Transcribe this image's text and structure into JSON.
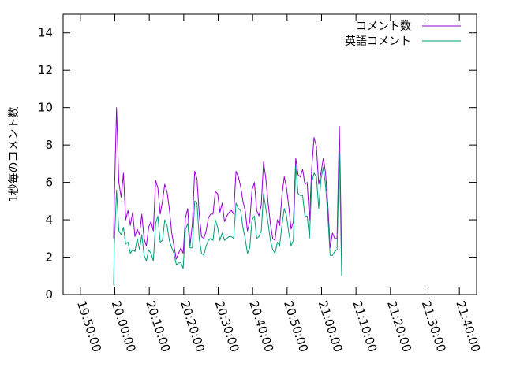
{
  "chart_data": {
    "type": "line",
    "title": "",
    "xlabel": "",
    "ylabel": "1秒毎のコメント数",
    "xlim": [
      "19:45:00",
      "21:45:00"
    ],
    "ylim": [
      0,
      15
    ],
    "x_ticks": [
      "19:50:00",
      "20:00:00",
      "20:10:00",
      "20:20:00",
      "20:30:00",
      "20:40:00",
      "20:50:00",
      "21:00:00",
      "21:10:00",
      "21:20:00",
      "21:30:00",
      "21:40:00"
    ],
    "y_ticks": [
      0,
      2,
      4,
      6,
      8,
      10,
      12,
      14
    ],
    "grid": false,
    "legend_position": "top-right",
    "series": [
      {
        "name": "コメント数",
        "color": "#9400d3",
        "points": [
          [
            "19:59:40",
            3.0
          ],
          [
            "19:59:50",
            5.0
          ],
          [
            "20:00:30",
            10.0
          ],
          [
            "20:01:10",
            6.0
          ],
          [
            "20:01:50",
            5.2
          ],
          [
            "20:02:30",
            6.5
          ],
          [
            "20:03:10",
            4.0
          ],
          [
            "20:03:50",
            4.5
          ],
          [
            "20:04:30",
            3.7
          ],
          [
            "20:05:10",
            4.4
          ],
          [
            "20:05:50",
            3.1
          ],
          [
            "20:06:30",
            3.5
          ],
          [
            "20:07:10",
            3.2
          ],
          [
            "20:07:50",
            4.3
          ],
          [
            "20:08:30",
            3.0
          ],
          [
            "20:09:10",
            2.6
          ],
          [
            "20:09:50",
            3.6
          ],
          [
            "20:10:30",
            3.9
          ],
          [
            "20:11:10",
            3.4
          ],
          [
            "20:11:50",
            6.1
          ],
          [
            "20:12:30",
            5.7
          ],
          [
            "20:13:10",
            4.3
          ],
          [
            "20:13:50",
            5.0
          ],
          [
            "20:14:30",
            5.9
          ],
          [
            "20:15:10",
            5.5
          ],
          [
            "20:15:50",
            4.6
          ],
          [
            "20:16:30",
            3.3
          ],
          [
            "20:17:10",
            2.6
          ],
          [
            "20:17:50",
            1.9
          ],
          [
            "20:18:30",
            2.2
          ],
          [
            "20:19:10",
            2.5
          ],
          [
            "20:19:50",
            2.2
          ],
          [
            "20:20:30",
            4.1
          ],
          [
            "20:21:10",
            4.6
          ],
          [
            "20:21:50",
            2.6
          ],
          [
            "20:22:30",
            3.8
          ],
          [
            "20:23:10",
            6.6
          ],
          [
            "20:23:50",
            6.2
          ],
          [
            "20:24:30",
            4.3
          ],
          [
            "20:25:10",
            3.1
          ],
          [
            "20:25:50",
            3.0
          ],
          [
            "20:26:30",
            3.4
          ],
          [
            "20:27:10",
            4.1
          ],
          [
            "20:27:50",
            4.3
          ],
          [
            "20:28:30",
            4.3
          ],
          [
            "20:29:10",
            5.5
          ],
          [
            "20:29:50",
            5.4
          ],
          [
            "20:30:30",
            4.4
          ],
          [
            "20:31:10",
            4.9
          ],
          [
            "20:31:50",
            3.9
          ],
          [
            "20:32:30",
            4.2
          ],
          [
            "20:33:10",
            4.4
          ],
          [
            "20:33:50",
            4.5
          ],
          [
            "20:34:30",
            4.3
          ],
          [
            "20:35:10",
            6.6
          ],
          [
            "20:35:50",
            6.3
          ],
          [
            "20:36:30",
            5.8
          ],
          [
            "20:37:10",
            5.0
          ],
          [
            "20:37:50",
            4.5
          ],
          [
            "20:38:30",
            3.4
          ],
          [
            "20:39:10",
            3.9
          ],
          [
            "20:39:50",
            5.6
          ],
          [
            "20:40:30",
            6.0
          ],
          [
            "20:41:10",
            4.5
          ],
          [
            "20:41:50",
            4.2
          ],
          [
            "20:42:30",
            4.8
          ],
          [
            "20:43:10",
            7.1
          ],
          [
            "20:43:50",
            6.2
          ],
          [
            "20:44:30",
            4.9
          ],
          [
            "20:45:10",
            3.8
          ],
          [
            "20:45:50",
            3.0
          ],
          [
            "20:46:30",
            2.9
          ],
          [
            "20:47:10",
            4.0
          ],
          [
            "20:47:50",
            3.7
          ],
          [
            "20:48:30",
            5.3
          ],
          [
            "20:49:10",
            6.3
          ],
          [
            "20:49:50",
            5.7
          ],
          [
            "20:50:30",
            4.7
          ],
          [
            "20:51:10",
            3.5
          ],
          [
            "20:51:50",
            3.9
          ],
          [
            "20:52:30",
            7.3
          ],
          [
            "20:53:10",
            6.4
          ],
          [
            "20:53:50",
            6.3
          ],
          [
            "20:54:30",
            6.7
          ],
          [
            "20:55:10",
            5.9
          ],
          [
            "20:55:50",
            6.0
          ],
          [
            "20:56:30",
            4.0
          ],
          [
            "20:57:10",
            6.8
          ],
          [
            "20:57:50",
            8.4
          ],
          [
            "20:58:30",
            7.9
          ],
          [
            "20:59:10",
            5.9
          ],
          [
            "20:59:50",
            6.5
          ],
          [
            "21:00:30",
            7.3
          ],
          [
            "21:01:10",
            6.5
          ],
          [
            "21:01:50",
            4.8
          ],
          [
            "21:02:30",
            2.5
          ],
          [
            "21:03:10",
            3.3
          ],
          [
            "21:03:50",
            3.0
          ],
          [
            "21:04:30",
            3.0
          ],
          [
            "21:05:10",
            9.0
          ],
          [
            "21:05:50",
            2.1
          ]
        ]
      },
      {
        "name": "英語コメント",
        "color": "#009e73",
        "points": [
          [
            "19:59:40",
            0.5
          ],
          [
            "19:59:50",
            2.6
          ],
          [
            "20:00:30",
            5.6
          ],
          [
            "20:01:10",
            3.4
          ],
          [
            "20:01:50",
            3.2
          ],
          [
            "20:02:30",
            3.6
          ],
          [
            "20:03:10",
            2.7
          ],
          [
            "20:03:50",
            2.8
          ],
          [
            "20:04:30",
            2.2
          ],
          [
            "20:05:10",
            2.4
          ],
          [
            "20:05:50",
            2.3
          ],
          [
            "20:06:30",
            3.0
          ],
          [
            "20:07:10",
            2.4
          ],
          [
            "20:07:50",
            3.2
          ],
          [
            "20:08:30",
            2.1
          ],
          [
            "20:09:10",
            1.8
          ],
          [
            "20:09:50",
            2.4
          ],
          [
            "20:10:30",
            2.2
          ],
          [
            "20:11:10",
            1.8
          ],
          [
            "20:11:50",
            3.8
          ],
          [
            "20:12:30",
            4.2
          ],
          [
            "20:13:10",
            2.8
          ],
          [
            "20:13:50",
            2.9
          ],
          [
            "20:14:30",
            4.0
          ],
          [
            "20:15:10",
            3.7
          ],
          [
            "20:15:50",
            2.9
          ],
          [
            "20:16:30",
            2.5
          ],
          [
            "20:17:10",
            2.2
          ],
          [
            "20:17:50",
            1.6
          ],
          [
            "20:18:30",
            1.7
          ],
          [
            "20:19:10",
            1.7
          ],
          [
            "20:19:50",
            1.4
          ],
          [
            "20:20:30",
            3.5
          ],
          [
            "20:21:10",
            3.8
          ],
          [
            "20:21:50",
            2.5
          ],
          [
            "20:22:30",
            2.5
          ],
          [
            "20:23:10",
            5.0
          ],
          [
            "20:23:50",
            4.9
          ],
          [
            "20:24:30",
            3.0
          ],
          [
            "20:25:10",
            2.2
          ],
          [
            "20:25:50",
            2.1
          ],
          [
            "20:26:30",
            2.6
          ],
          [
            "20:27:10",
            2.9
          ],
          [
            "20:27:50",
            3.0
          ],
          [
            "20:28:30",
            2.9
          ],
          [
            "20:29:10",
            4.0
          ],
          [
            "20:29:50",
            3.6
          ],
          [
            "20:30:30",
            2.9
          ],
          [
            "20:31:10",
            3.3
          ],
          [
            "20:31:50",
            2.9
          ],
          [
            "20:32:30",
            3.0
          ],
          [
            "20:33:10",
            3.1
          ],
          [
            "20:33:50",
            3.1
          ],
          [
            "20:34:30",
            3.0
          ],
          [
            "20:35:10",
            4.9
          ],
          [
            "20:35:50",
            4.6
          ],
          [
            "20:36:30",
            4.5
          ],
          [
            "20:37:10",
            3.6
          ],
          [
            "20:37:50",
            3.0
          ],
          [
            "20:38:30",
            2.2
          ],
          [
            "20:39:10",
            2.5
          ],
          [
            "20:39:50",
            4.0
          ],
          [
            "20:40:30",
            4.2
          ],
          [
            "20:41:10",
            3.0
          ],
          [
            "20:41:50",
            3.1
          ],
          [
            "20:42:30",
            3.4
          ],
          [
            "20:43:10",
            5.4
          ],
          [
            "20:43:50",
            4.6
          ],
          [
            "20:44:30",
            3.8
          ],
          [
            "20:45:10",
            2.9
          ],
          [
            "20:45:50",
            2.4
          ],
          [
            "20:46:30",
            2.2
          ],
          [
            "20:47:10",
            2.8
          ],
          [
            "20:47:50",
            2.6
          ],
          [
            "20:48:30",
            3.7
          ],
          [
            "20:49:10",
            4.6
          ],
          [
            "20:49:50",
            4.2
          ],
          [
            "20:50:30",
            3.3
          ],
          [
            "20:51:10",
            2.6
          ],
          [
            "20:51:50",
            2.9
          ],
          [
            "20:52:30",
            6.9
          ],
          [
            "20:53:10",
            5.4
          ],
          [
            "20:53:50",
            5.3
          ],
          [
            "20:54:30",
            5.3
          ],
          [
            "20:55:10",
            4.2
          ],
          [
            "20:55:50",
            4.2
          ],
          [
            "20:56:30",
            3.0
          ],
          [
            "20:57:10",
            6.0
          ],
          [
            "20:57:50",
            6.5
          ],
          [
            "20:58:30",
            6.3
          ],
          [
            "20:59:10",
            4.6
          ],
          [
            "20:59:50",
            6.2
          ],
          [
            "21:00:30",
            6.8
          ],
          [
            "21:01:10",
            5.8
          ],
          [
            "21:01:50",
            4.2
          ],
          [
            "21:02:30",
            2.1
          ],
          [
            "21:03:10",
            2.1
          ],
          [
            "21:03:50",
            2.3
          ],
          [
            "21:04:30",
            2.4
          ],
          [
            "21:05:10",
            7.6
          ],
          [
            "21:05:50",
            1.0
          ]
        ]
      }
    ]
  }
}
